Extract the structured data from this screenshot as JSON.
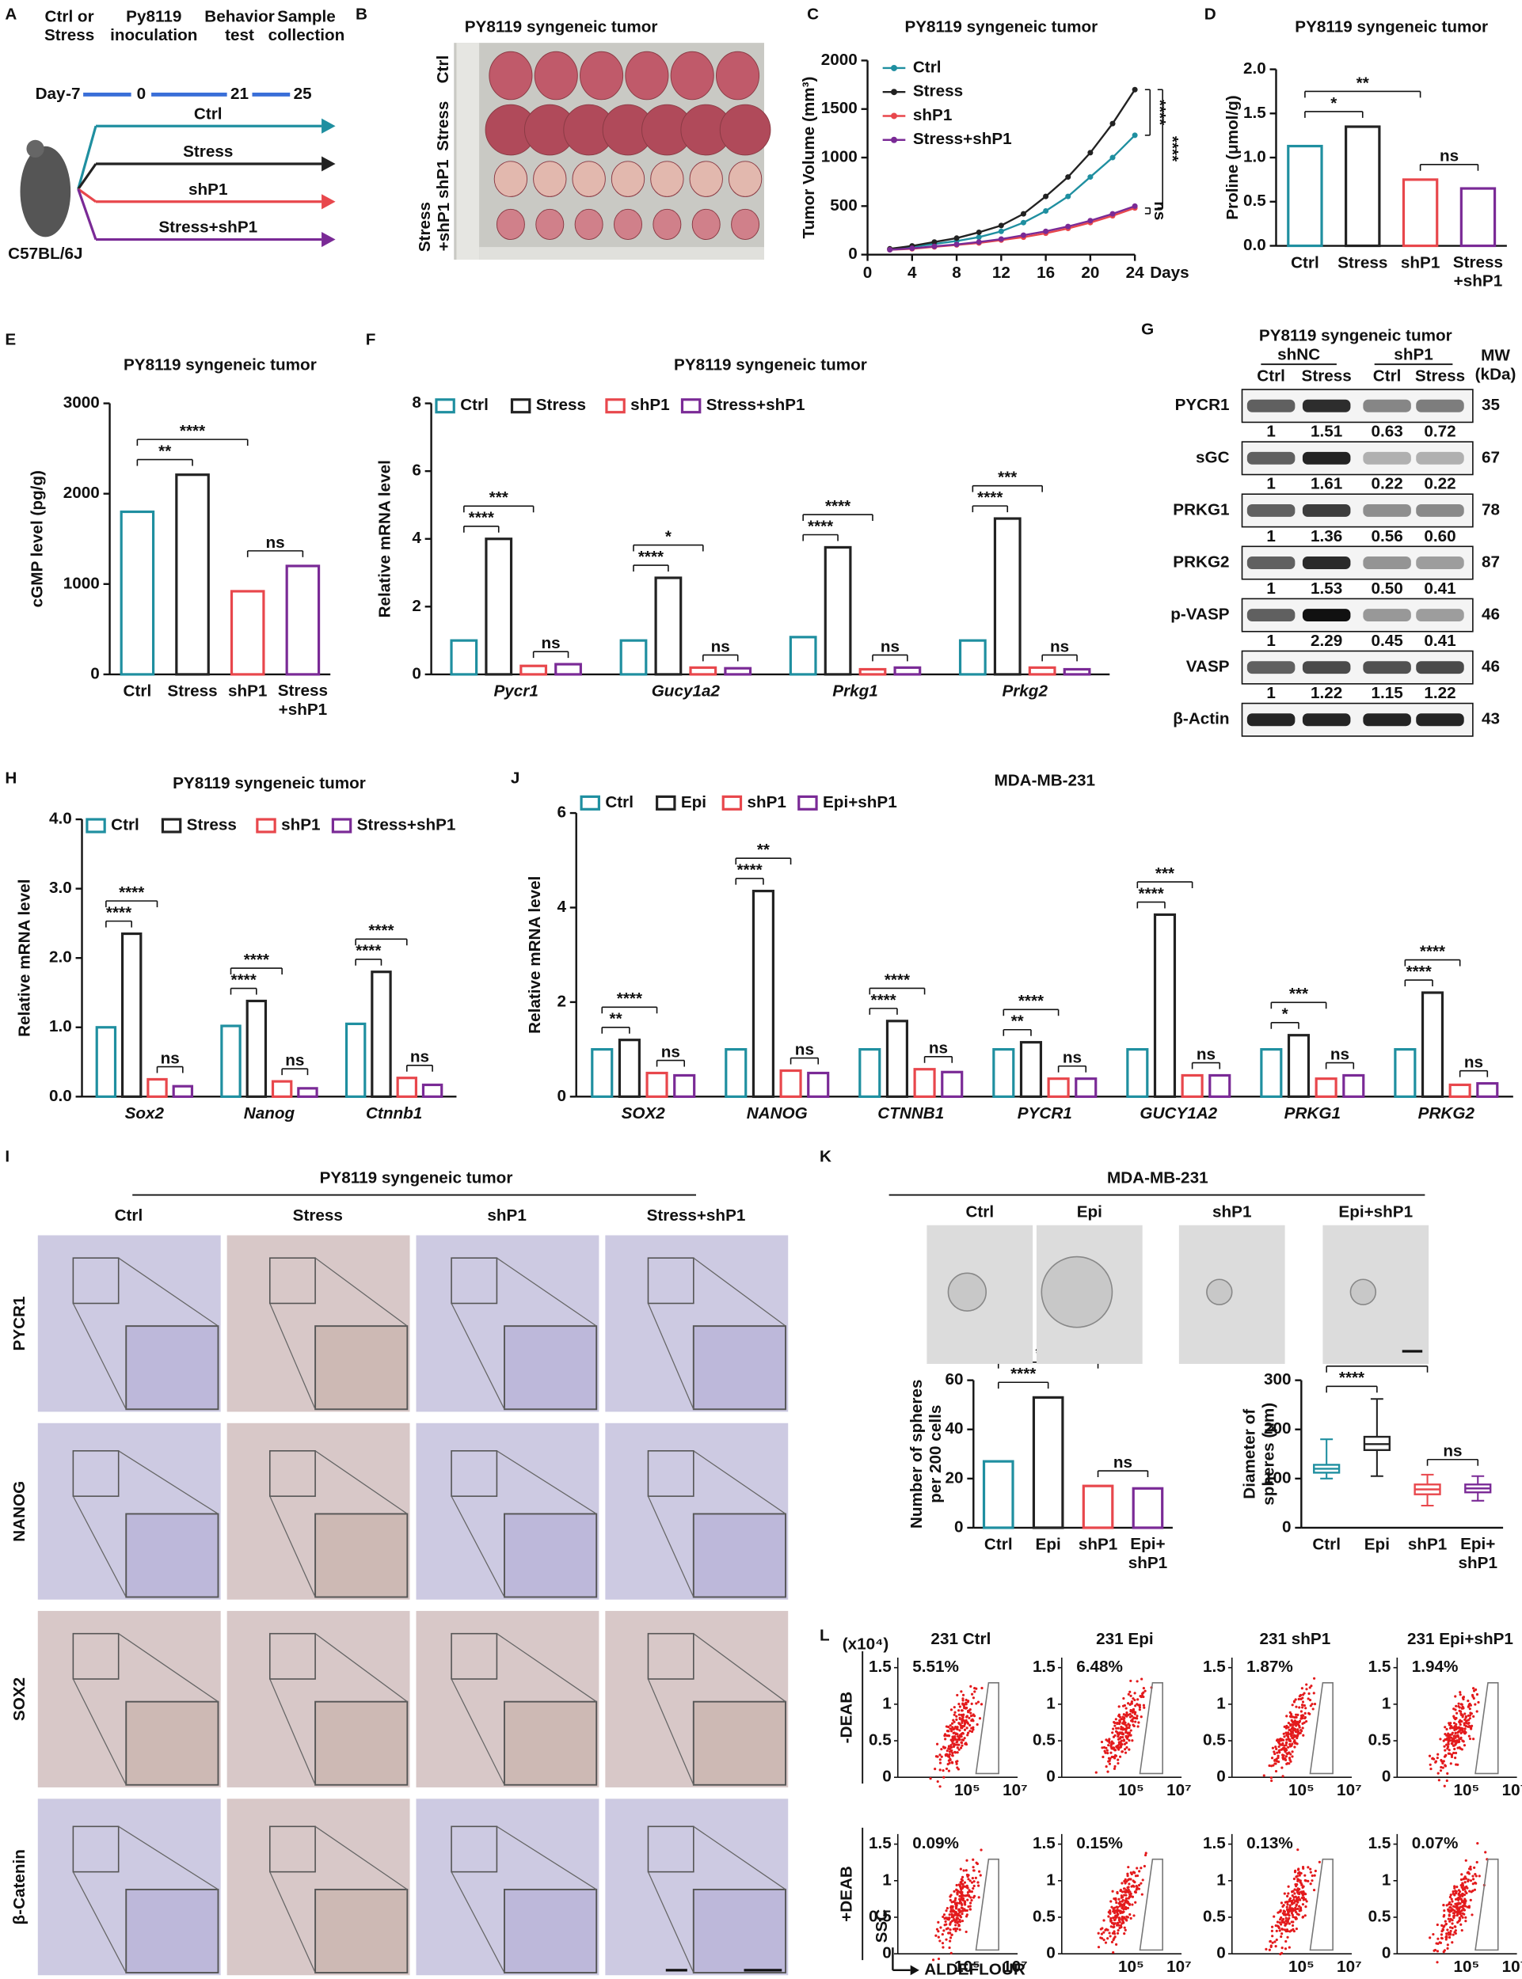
{
  "figure": {
    "panel_labels": [
      "A",
      "B",
      "C",
      "D",
      "E",
      "F",
      "G",
      "H",
      "J",
      "I",
      "K",
      "L"
    ],
    "schematic": {
      "events": [
        "Ctrl or\nStress",
        "Py8119\ninoculation",
        "Behavior\ntest",
        "Sample\ncollection"
      ],
      "day_label": "Day",
      "days": [
        "-7",
        "0",
        "21",
        "25"
      ],
      "groups": [
        {
          "name": "Ctrl",
          "color": "#1f8fa0"
        },
        {
          "name": "Stress",
          "color": "#222222"
        },
        {
          "name": "shP1",
          "color": "#e8474c"
        },
        {
          "name": "Stress+shP1",
          "color": "#7a2a96"
        }
      ],
      "mouse": "C57BL/6J"
    },
    "tumor_photo": {
      "title": "PY8119 syngeneic tumor",
      "rows": [
        "Ctrl",
        "Stress",
        "shP1",
        "Stress\n+shP1"
      ]
    },
    "blot": {
      "title": "PY8119 syngeneic tumor",
      "groups": [
        "shNC",
        "shP1"
      ],
      "lanes": [
        "Ctrl",
        "Stress",
        "Ctrl",
        "Stress"
      ],
      "mw_header": "MW\n(kDa)",
      "proteins": [
        {
          "name": "PYCR1",
          "quant": [
            "1",
            "1.51",
            "0.63",
            "0.72"
          ],
          "mw": "35"
        },
        {
          "name": "sGC",
          "quant": [
            "1",
            "1.61",
            "0.22",
            "0.22"
          ],
          "mw": "67"
        },
        {
          "name": "PRKG1",
          "quant": [
            "1",
            "1.36",
            "0.56",
            "0.60"
          ],
          "mw": "78"
        },
        {
          "name": "PRKG2",
          "quant": [
            "1",
            "1.53",
            "0.50",
            "0.41"
          ],
          "mw": "87"
        },
        {
          "name": "p-VASP",
          "quant": [
            "1",
            "2.29",
            "0.45",
            "0.41"
          ],
          "mw": "46"
        },
        {
          "name": "VASP",
          "quant": [
            "1",
            "1.22",
            "1.15",
            "1.22"
          ],
          "mw": "46"
        },
        {
          "name": "β-Actin",
          "mw": "43"
        }
      ]
    },
    "ihc": {
      "title": "PY8119 syngeneic tumor",
      "columns": [
        "Ctrl",
        "Stress",
        "shP1",
        "Stress+shP1"
      ],
      "rows": [
        "PYCR1",
        "NANOG",
        "SOX2",
        "β-Catenin"
      ]
    },
    "sphere_images": {
      "title": "MDA-MB-231",
      "columns": [
        "Ctrl",
        "Epi",
        "shP1",
        "Epi+shP1"
      ]
    },
    "flow": {
      "columns": [
        "231 Ctrl",
        "231 Epi",
        "231 shP1",
        "231 Epi+shP1"
      ],
      "rows": [
        {
          "name": "-DEAB",
          "percents": [
            "5.51%",
            "6.48%",
            "1.87%",
            "1.94%"
          ]
        },
        {
          "name": "+DEAB",
          "percents": [
            "0.09%",
            "0.15%",
            "0.13%",
            "0.07%"
          ]
        }
      ],
      "unit": "(x10⁴)",
      "yticks": [
        "0",
        "0.5",
        "1",
        "1.5"
      ],
      "xticks": [
        "10⁵",
        "10⁷"
      ],
      "ylabel": "SSC",
      "xlabel": "ALDEFLOUR"
    }
  },
  "chart_data": [
    {
      "type": "line",
      "title": "PY8119 syngeneic tumor",
      "ylabel": "Tumor Volume (mm³)",
      "xlabel": "Days",
      "x": [
        2,
        4,
        6,
        8,
        10,
        12,
        14,
        16,
        18,
        20,
        22,
        24
      ],
      "series": [
        {
          "name": "Ctrl",
          "color": "#1f8fa0",
          "values": [
            55,
            80,
            110,
            140,
            180,
            240,
            330,
            450,
            600,
            800,
            1000,
            1230
          ]
        },
        {
          "name": "Stress",
          "color": "#222222",
          "values": [
            60,
            90,
            130,
            170,
            230,
            300,
            420,
            600,
            800,
            1050,
            1350,
            1700
          ]
        },
        {
          "name": "shP1",
          "color": "#e8474c",
          "values": [
            50,
            60,
            80,
            100,
            120,
            150,
            180,
            220,
            270,
            330,
            400,
            480
          ]
        },
        {
          "name": "Stress+shP1",
          "color": "#7a2a96",
          "values": [
            50,
            65,
            85,
            105,
            130,
            160,
            200,
            240,
            290,
            350,
            420,
            500
          ]
        }
      ],
      "xlim": [
        0,
        24
      ],
      "xticks": [
        0,
        4,
        8,
        12,
        16,
        20,
        24
      ],
      "ylim": [
        0,
        2000
      ],
      "yticks": [
        0,
        500,
        1000,
        1500,
        2000
      ],
      "annotations": [
        "****",
        "****",
        "ns"
      ]
    },
    {
      "type": "bar",
      "title": "PY8119 syngeneic tumor",
      "ylabel": "Proline (μmol/g)",
      "categories": [
        "Ctrl",
        "Stress",
        "shP1",
        "Stress\n+shP1"
      ],
      "values": [
        1.13,
        1.35,
        0.75,
        0.65
      ],
      "colors": [
        "#1f8fa0",
        "#222222",
        "#e8474c",
        "#7a2a96"
      ],
      "ylim": [
        0,
        2
      ],
      "yticks": [
        {
          "value": 0,
          "label": "0.0"
        },
        0.5,
        {
          "value": 1,
          "label": "1.0"
        },
        1.5,
        {
          "value": 2,
          "label": "2.0"
        }
      ],
      "annotations": [
        "*",
        "**",
        "ns"
      ]
    },
    {
      "type": "bar",
      "title": "PY8119 syngeneic tumor",
      "ylabel": "cGMP level (pg/g)",
      "categories": [
        "Ctrl",
        "Stress",
        "shP1",
        "Stress\n+shP1"
      ],
      "values": [
        1800,
        2210,
        920,
        1200
      ],
      "colors": [
        "#1f8fa0",
        "#222222",
        "#e8474c",
        "#7a2a96"
      ],
      "ylim": [
        0,
        3000
      ],
      "yticks": [
        0,
        1000,
        2000,
        3000
      ],
      "annotations": [
        "**",
        "****",
        "ns"
      ]
    },
    {
      "type": "grouped",
      "title": "PY8119 syngeneic tumor",
      "ylabel": "Relative mRNA level",
      "categories": [
        "Pycr1",
        "Gucy1a2",
        "Prkg1",
        "Prkg2"
      ],
      "series": [
        {
          "name": "Ctrl",
          "color": "#1f8fa0",
          "values": [
            1.0,
            1.0,
            1.1,
            1.0
          ]
        },
        {
          "name": "Stress",
          "color": "#222222",
          "values": [
            4.0,
            2.85,
            3.75,
            4.6
          ]
        },
        {
          "name": "shP1",
          "color": "#e8474c",
          "values": [
            0.25,
            0.2,
            0.15,
            0.2
          ]
        },
        {
          "name": "Stress+shP1",
          "color": "#7a2a96",
          "values": [
            0.3,
            0.18,
            0.2,
            0.15
          ]
        }
      ],
      "ylim": [
        0,
        8
      ],
      "yticks": [
        0,
        2,
        4,
        6,
        8
      ],
      "annotations": [
        [
          "****",
          "***",
          "ns"
        ],
        [
          "****",
          "*",
          "ns"
        ],
        [
          "****",
          "****",
          "ns"
        ],
        [
          "****",
          "***",
          "ns"
        ]
      ]
    },
    {
      "type": "grouped",
      "title": "PY8119 syngeneic tumor",
      "ylabel": "Relative mRNA level",
      "categories": [
        "Sox2",
        "Nanog",
        "Ctnnb1"
      ],
      "series": [
        {
          "name": "Ctrl",
          "color": "#1f8fa0",
          "values": [
            1.0,
            1.02,
            1.05
          ]
        },
        {
          "name": "Stress",
          "color": "#222222",
          "values": [
            2.35,
            1.38,
            1.8
          ]
        },
        {
          "name": "shP1",
          "color": "#e8474c",
          "values": [
            0.25,
            0.22,
            0.27
          ]
        },
        {
          "name": "Stress+shP1",
          "color": "#7a2a96",
          "values": [
            0.15,
            0.12,
            0.17
          ]
        }
      ],
      "ylim": [
        0,
        4
      ],
      "yticks": [
        {
          "value": 0,
          "label": "0.0"
        },
        {
          "value": 1,
          "label": "1.0"
        },
        {
          "value": 2,
          "label": "2.0"
        },
        {
          "value": 3,
          "label": "3.0"
        },
        {
          "value": 4,
          "label": "4.0"
        }
      ],
      "annotations": [
        [
          "****",
          "****",
          "ns"
        ],
        [
          "****",
          "****",
          "ns"
        ],
        [
          "****",
          "****",
          "ns"
        ]
      ]
    },
    {
      "type": "grouped",
      "title": "MDA-MB-231",
      "ylabel": "Relative mRNA level",
      "categories": [
        "SOX2",
        "NANOG",
        "CTNNB1",
        "PYCR1",
        "GUCY1A2",
        "PRKG1",
        "PRKG2"
      ],
      "series": [
        {
          "name": "Ctrl",
          "color": "#1f8fa0",
          "values": [
            1,
            1,
            1,
            1,
            1,
            1,
            1
          ]
        },
        {
          "name": "Epi",
          "color": "#222222",
          "values": [
            1.2,
            4.35,
            1.6,
            1.15,
            3.85,
            1.3,
            2.2
          ]
        },
        {
          "name": "shP1",
          "color": "#e8474c",
          "values": [
            0.5,
            0.55,
            0.58,
            0.38,
            0.45,
            0.38,
            0.25
          ]
        },
        {
          "name": "Epi+shP1",
          "color": "#7a2a96",
          "values": [
            0.45,
            0.5,
            0.52,
            0.38,
            0.45,
            0.45,
            0.28
          ]
        }
      ],
      "ylim": [
        0,
        6
      ],
      "yticks": [
        0,
        2,
        4,
        6
      ],
      "annotations": [
        [
          "**",
          "****",
          "ns"
        ],
        [
          "****",
          "**",
          "ns"
        ],
        [
          "****",
          "****",
          "ns"
        ],
        [
          "**",
          "****",
          "ns"
        ],
        [
          "****",
          "***",
          "ns"
        ],
        [
          "*",
          "***",
          "ns"
        ],
        [
          "****",
          "****",
          "ns"
        ]
      ]
    },
    {
      "type": "bar",
      "ylabel": "Number of spheres\nper 200 cells",
      "categories": [
        "Ctrl",
        "Epi",
        "shP1",
        "Epi+\nshP1"
      ],
      "values": [
        27,
        53,
        17,
        16
      ],
      "colors": [
        "#1f8fa0",
        "#222222",
        "#e8474c",
        "#7a2a96"
      ],
      "ylim": [
        0,
        60
      ],
      "yticks": [
        0,
        20,
        40,
        60
      ],
      "annotations": [
        "****",
        "****",
        "ns"
      ]
    },
    {
      "type": "box",
      "ylabel": "Diameter of\nspheres (μm)",
      "categories": [
        "Ctrl",
        "Epi",
        "shP1",
        "Epi+\nshP1"
      ],
      "colors": [
        "#1f8fa0",
        "#222222",
        "#e8474c",
        "#7a2a96"
      ],
      "boxes": [
        {
          "min": 100,
          "q1": 112,
          "median": 120,
          "q3": 128,
          "max": 180
        },
        {
          "min": 105,
          "q1": 158,
          "median": 170,
          "q3": 185,
          "max": 262
        },
        {
          "min": 45,
          "q1": 68,
          "median": 78,
          "q3": 88,
          "max": 108
        },
        {
          "min": 55,
          "q1": 72,
          "median": 80,
          "q3": 88,
          "max": 105
        }
      ],
      "ylim": [
        0,
        300
      ],
      "yticks": [
        0,
        100,
        200,
        300
      ],
      "annotations": [
        "****",
        "****",
        "ns"
      ]
    }
  ]
}
